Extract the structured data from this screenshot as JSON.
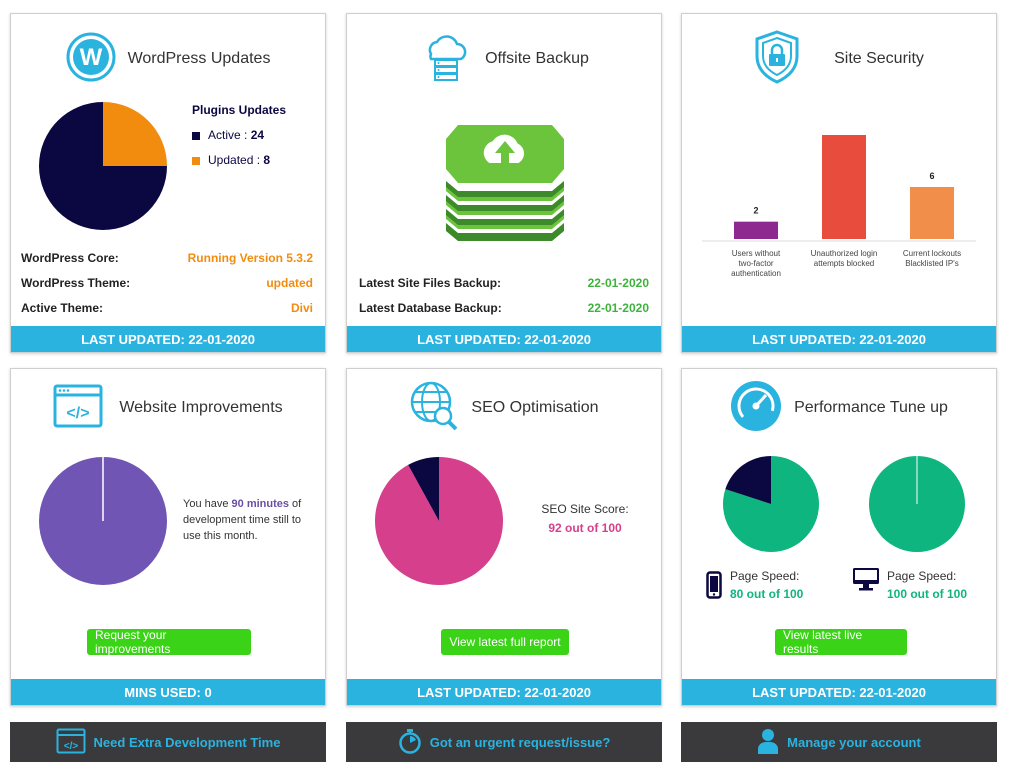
{
  "colors": {
    "accent": "#2bb3e0",
    "navy": "#0b0741",
    "orange": "#f28c0f",
    "green_text": "#3db33d",
    "button_green": "#3bd317",
    "purple": "#7055b4",
    "pink": "#d63f8c",
    "teal": "#0fb57e",
    "dark_bar": "#3a3a3c"
  },
  "wordpress": {
    "title": "WordPress Updates",
    "legend_title": "Plugins Updates",
    "active_label": "Active : ",
    "active_value": "24",
    "updated_label": "Updated : ",
    "updated_value": "8",
    "core_label": "WordPress Core:",
    "core_value": "Running Version 5.3.2",
    "theme_label": "WordPress Theme:",
    "theme_value": "updated",
    "active_theme_label": "Active Theme:",
    "active_theme_value": "Divi",
    "footer": "LAST UPDATED: 22-01-2020",
    "icon": "wordpress-icon"
  },
  "backup": {
    "title": "Offsite Backup",
    "files_label": "Latest Site Files Backup:",
    "files_value": "22-01-2020",
    "db_label": "Latest Database Backup:",
    "db_value": "22-01-2020",
    "footer": "LAST UPDATED: 22-01-2020",
    "icon": "cloud-server-icon"
  },
  "security": {
    "title": "Site Security",
    "footer": "LAST UPDATED: 22-01-2020",
    "icon": "shield-lock-icon"
  },
  "improvements": {
    "title": "Website Improvements",
    "text_pre": "You have ",
    "minutes": "90 minutes",
    "text_post": " of development time still to use this month.",
    "button": "Request your improvements",
    "footer": "MINS USED: 0",
    "icon": "code-window-icon"
  },
  "seo": {
    "title": "SEO Optimisation",
    "score_label": "SEO Site Score:",
    "score_value": "92 out of 100",
    "button": "View latest full report",
    "footer": "LAST UPDATED: 22-01-2020",
    "icon": "globe-search-icon"
  },
  "performance": {
    "title": "Performance Tune up",
    "mobile_label": "Page Speed:",
    "mobile_value": "80 out of 100",
    "desktop_label": "Page Speed:",
    "desktop_value": "100 out of 100",
    "button": "View latest live results",
    "footer": "LAST UPDATED: 22-01-2020",
    "icon": "speedometer-icon"
  },
  "bottom_bar": {
    "dev_time": "Need Extra Development Time",
    "urgent": "Got an urgent request/issue?",
    "account": "Manage your account"
  },
  "chart_data": [
    {
      "type": "pie",
      "series": [
        {
          "values": [
            24,
            8
          ]
        }
      ],
      "categories": [
        "Active",
        "Updated"
      ],
      "colors": [
        "#0b0741",
        "#f28c0f"
      ]
    },
    {
      "type": "bar",
      "categories": [
        "Users without two-factor authentication",
        "Unauthorized login attempts blocked",
        "Current lockouts Blacklisted IP's"
      ],
      "values": [
        2,
        12,
        6
      ],
      "colors": [
        "#8e2a8f",
        "#e84c3d",
        "#f08e4a"
      ],
      "ylim": [
        0,
        12
      ]
    },
    {
      "type": "pie",
      "values": [
        90,
        0
      ],
      "colors": [
        "#7055b4",
        "#ffffff"
      ]
    },
    {
      "type": "pie",
      "values": [
        92,
        8
      ],
      "colors": [
        "#d63f8c",
        "#0b0741"
      ]
    },
    {
      "type": "pie",
      "values": [
        80,
        20
      ],
      "colors": [
        "#0fb57e",
        "#0b0741"
      ]
    },
    {
      "type": "pie",
      "values": [
        100,
        0
      ],
      "colors": [
        "#0fb57e",
        "#0b0741"
      ]
    }
  ]
}
